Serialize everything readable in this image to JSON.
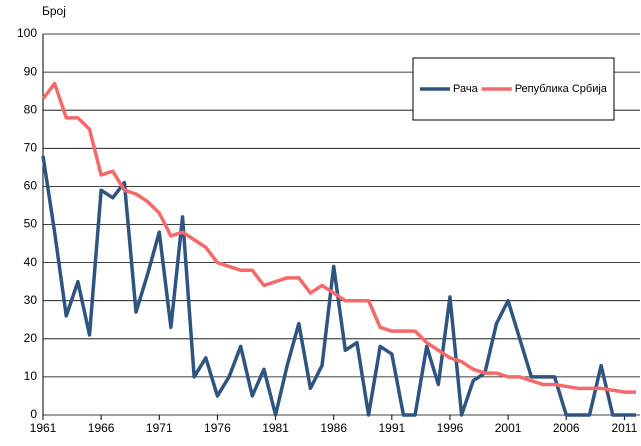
{
  "chart_data": {
    "type": "line",
    "y_label": "Број",
    "x": [
      1961,
      1962,
      1963,
      1964,
      1965,
      1966,
      1967,
      1968,
      1969,
      1970,
      1971,
      1972,
      1973,
      1974,
      1975,
      1976,
      1977,
      1978,
      1979,
      1980,
      1981,
      1982,
      1983,
      1984,
      1985,
      1986,
      1987,
      1988,
      1989,
      1990,
      1991,
      1992,
      1993,
      1994,
      1995,
      1996,
      1997,
      1998,
      1999,
      2000,
      2001,
      2002,
      2003,
      2004,
      2005,
      2006,
      2007,
      2008,
      2009,
      2010,
      2011,
      2012
    ],
    "series": [
      {
        "name": "Рача",
        "color": "#2e5482",
        "values": [
          68,
          48,
          26,
          35,
          21,
          59,
          57,
          61,
          27,
          37,
          48,
          23,
          52,
          10,
          15,
          5,
          10,
          18,
          5,
          12,
          0,
          13,
          24,
          7,
          13,
          39,
          17,
          19,
          0,
          18,
          16,
          0,
          0,
          18,
          8,
          31,
          0,
          9,
          11,
          24,
          30,
          20,
          10,
          10,
          10,
          0,
          0,
          0,
          13,
          0,
          0,
          0
        ]
      },
      {
        "name": "Република Србија",
        "color": "#f46a6a",
        "values": [
          83,
          87,
          78,
          78,
          75,
          63,
          64,
          59,
          58,
          56,
          53,
          47,
          48,
          46,
          44,
          40,
          39,
          38,
          38,
          34,
          35,
          36,
          36,
          32,
          34,
          32,
          30,
          30,
          30,
          23,
          22,
          22,
          22,
          19,
          17,
          15,
          14,
          12,
          11,
          11,
          10,
          10,
          9,
          8,
          8,
          7.5,
          7,
          7,
          7,
          6.5,
          6,
          6
        ]
      }
    ],
    "xlim": [
      1961,
      2012
    ],
    "xticks": [
      1961,
      1966,
      1971,
      1976,
      1981,
      1986,
      1991,
      1996,
      2001,
      2006,
      2011
    ],
    "ylim": [
      0,
      100
    ],
    "yticks": [
      0,
      10,
      20,
      30,
      40,
      50,
      60,
      70,
      80,
      90,
      100
    ],
    "grid": true,
    "legend": "upper right"
  }
}
